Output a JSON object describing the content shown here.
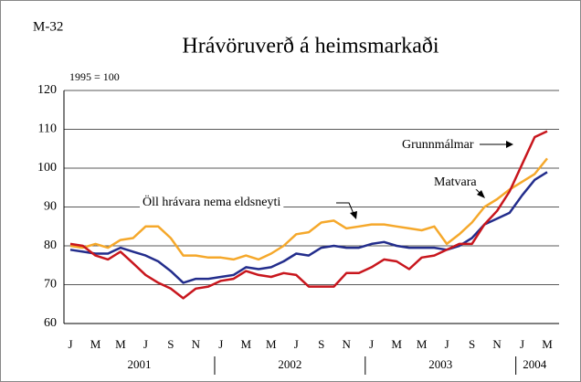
{
  "chart_data": {
    "type": "line",
    "label": "M-32",
    "title": "Hrávöruverð á heimsmarkaði",
    "subtitle": "1995 = 100",
    "categories": [
      "J",
      null,
      "M",
      null,
      "M",
      null,
      "J",
      null,
      "S",
      null,
      "N",
      null,
      "J",
      null,
      "M",
      null,
      "M",
      null,
      "J",
      null,
      "S",
      null,
      "N",
      null,
      "J",
      null,
      "M",
      null,
      "M",
      null,
      "J",
      null,
      "S",
      null,
      "N",
      null,
      "J",
      null,
      "M"
    ],
    "year_labels": [
      "2001",
      "2002",
      "2003",
      "2004"
    ],
    "series": [
      {
        "name": "Matvara",
        "color": "#f5a82b",
        "values": [
          80,
          79.5,
          80.5,
          79.5,
          81.5,
          82,
          85,
          85,
          82,
          77.5,
          77.5,
          77,
          77,
          76.5,
          77.5,
          76.5,
          78,
          80,
          83,
          83.5,
          86,
          86.5,
          84.5,
          85,
          85.5,
          85.5,
          85,
          84.5,
          84,
          85,
          80.5,
          83,
          86,
          90,
          92,
          94.5,
          96.5,
          98.5,
          102.5
        ]
      },
      {
        "name": "Öll hrávara nema eldsneyti",
        "color": "#232d8c",
        "values": [
          79,
          78.5,
          78,
          78,
          79.5,
          78.5,
          77.5,
          76,
          73.5,
          70.5,
          71.5,
          71.5,
          72,
          72.5,
          74.5,
          74,
          74.5,
          76,
          78,
          77.5,
          79.5,
          80,
          79.5,
          79.5,
          80.5,
          81,
          80,
          79.5,
          79.5,
          79.5,
          79,
          80,
          82,
          85.5,
          87,
          88.5,
          93,
          97,
          99
        ]
      },
      {
        "name": "Grunnmálmar",
        "color": "#c8161d",
        "values": [
          80.5,
          80,
          77.5,
          76.5,
          78.5,
          75.5,
          72.5,
          70.5,
          69,
          66.5,
          69,
          69.5,
          71,
          71.5,
          73.5,
          72.5,
          72,
          73,
          72.5,
          69.5,
          69.5,
          69.5,
          73,
          73,
          74.5,
          76.5,
          76,
          74,
          77,
          77.5,
          79,
          80.5,
          80.5,
          85.5,
          89,
          94,
          101,
          108,
          109.5
        ]
      }
    ],
    "ylim": [
      60,
      120
    ],
    "yticks": [
      60,
      70,
      80,
      90,
      100,
      110,
      120
    ],
    "grid": true
  }
}
